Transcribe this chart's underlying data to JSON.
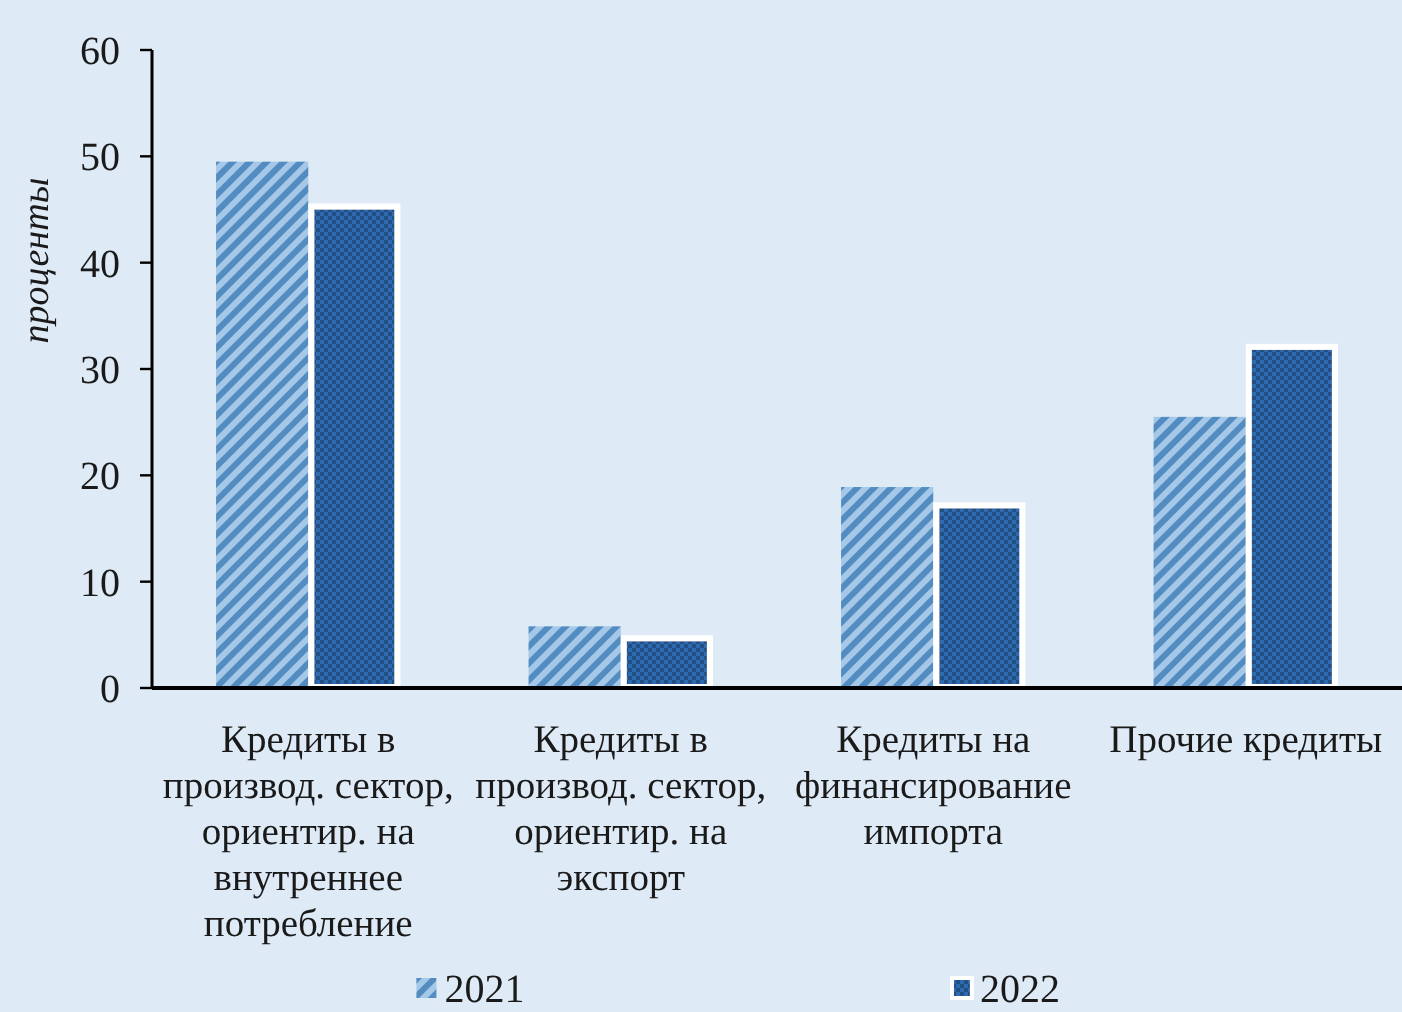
{
  "chart_data": {
    "type": "bar",
    "ylabel": "проценты",
    "categories": [
      "Кредиты в\nпроизвод. сектор,\nориентир. на\nвнутреннее\nпотребление",
      "Кредиты в\nпроизвод. сектор,\nориентир. на\nэкспорт",
      "Кредиты на\nфинансирование\nимпорта",
      "Прочие кредиты"
    ],
    "series": [
      {
        "name": "2021",
        "color": "#5b9bd5",
        "values": [
          49.5,
          5.8,
          18.9,
          25.5
        ]
      },
      {
        "name": "2022",
        "color": "#2e6bb0",
        "values": [
          45.0,
          4.4,
          16.9,
          31.8
        ]
      }
    ],
    "ylim": [
      0,
      60
    ],
    "yticks": [
      0,
      10,
      20,
      30,
      40,
      50,
      60
    ],
    "legend": "bottom"
  }
}
